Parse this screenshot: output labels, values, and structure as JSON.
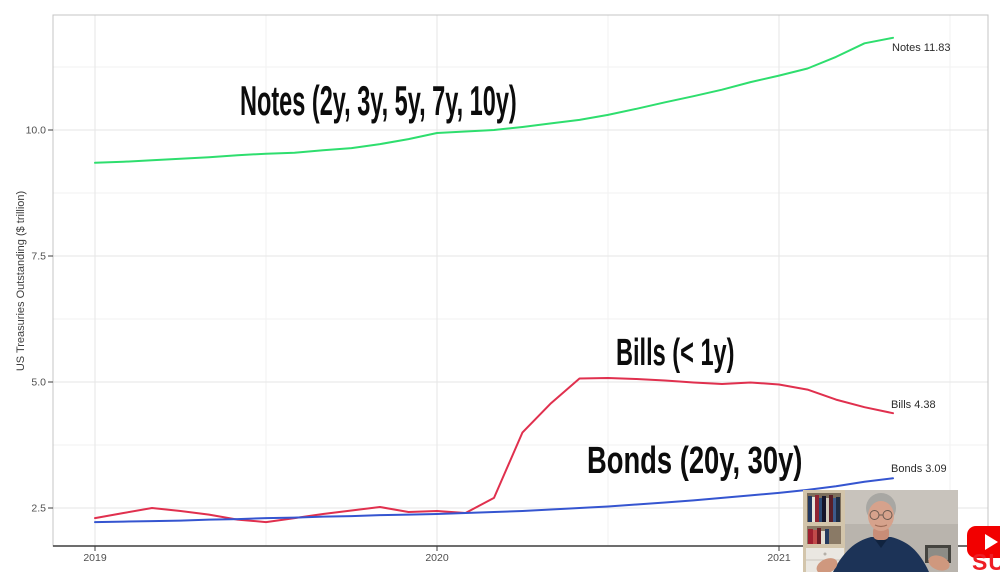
{
  "chart_data": {
    "type": "line",
    "title": "",
    "ylabel": "US Treasuries Outstanding ($ trillion)",
    "xlabel": "",
    "x_unit": "months since Jan 2019",
    "ylim": [
      1.75,
      12.3
    ],
    "grid": "major+minor, light gray on white, panel border",
    "legend_position": "none (direct line end labels)",
    "axes": {
      "x_ticks": [
        {
          "label": "2019",
          "month": 0
        },
        {
          "label": "2020",
          "month": 12
        },
        {
          "label": "2021",
          "month": 24
        }
      ],
      "x_minor_months": [
        6,
        18,
        30
      ],
      "y_ticks": [
        {
          "label": "2.5",
          "value": 2.5
        },
        {
          "label": "5.0",
          "value": 5.0
        },
        {
          "label": "7.5",
          "value": 7.5
        },
        {
          "label": "10.0",
          "value": 10.0
        }
      ],
      "y_minor_values": [
        3.75,
        6.25,
        8.75,
        11.25
      ]
    },
    "series": [
      {
        "name": "Notes",
        "color": "#2ede6e",
        "end_label": "Notes 11.83",
        "end_value": 11.83,
        "values": [
          9.35,
          9.37,
          9.4,
          9.43,
          9.46,
          9.5,
          9.53,
          9.55,
          9.6,
          9.64,
          9.72,
          9.82,
          9.94,
          9.97,
          10.0,
          10.06,
          10.13,
          10.2,
          10.3,
          10.42,
          10.55,
          10.67,
          10.8,
          10.95,
          11.08,
          11.22,
          11.45,
          11.72,
          11.83
        ]
      },
      {
        "name": "Bills",
        "color": "#e0304e",
        "end_label": "Bills 4.38",
        "end_value": 4.38,
        "values": [
          2.3,
          2.4,
          2.5,
          2.44,
          2.37,
          2.27,
          2.22,
          2.3,
          2.38,
          2.45,
          2.52,
          2.42,
          2.44,
          2.4,
          2.7,
          4.0,
          4.58,
          5.07,
          5.08,
          5.06,
          5.03,
          4.99,
          4.96,
          4.99,
          4.95,
          4.85,
          4.65,
          4.5,
          4.38
        ]
      },
      {
        "name": "Bonds",
        "color": "#3555d0",
        "end_label": "Bonds 3.09",
        "end_value": 3.09,
        "values": [
          2.22,
          2.23,
          2.24,
          2.25,
          2.27,
          2.28,
          2.3,
          2.31,
          2.33,
          2.34,
          2.36,
          2.37,
          2.38,
          2.4,
          2.42,
          2.44,
          2.47,
          2.5,
          2.53,
          2.57,
          2.61,
          2.65,
          2.7,
          2.75,
          2.8,
          2.86,
          2.93,
          3.02,
          3.09
        ]
      }
    ],
    "annotations": [
      {
        "text": "Notes (2y, 3y, 5y, 7y, 10y)"
      },
      {
        "text": "Bills (< 1y)"
      },
      {
        "text": "Bonds (20y, 30y)"
      }
    ]
  },
  "overlay": {
    "subscribe_text": "SU",
    "youtube_icon": "play-button"
  }
}
